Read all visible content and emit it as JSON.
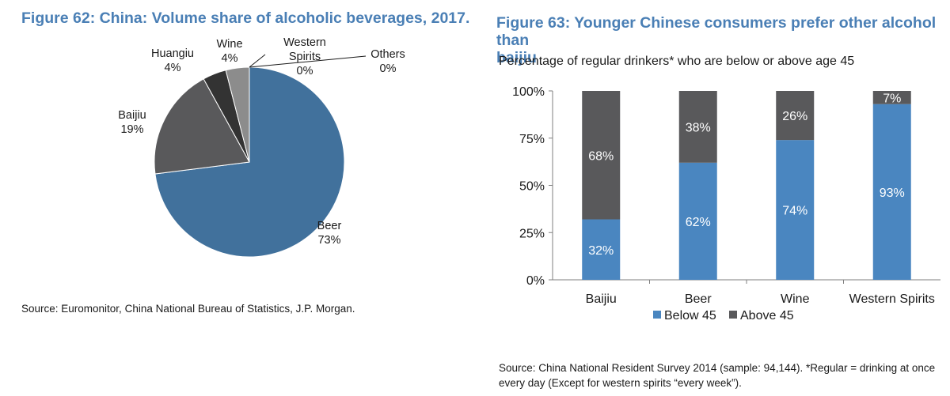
{
  "left": {
    "title": "Figure 62: China: Volume share of alcoholic beverages, 2017.",
    "source": "Source: Euromonitor, China National Bureau of Statistics, J.P. Morgan."
  },
  "right": {
    "title_line1": "Figure 63: Younger Chinese consumers prefer other alcohol than",
    "title_line2": "baijiu",
    "subtitle": "Percentage of regular drinkers* who are below or above age 45",
    "source_line1": "Source: China National Resident Survey 2014 (sample: 94,144). *Regular = drinking at once",
    "source_line2": "every day (Except for western spirits “every week”)."
  },
  "colors": {
    "blue": "#4a86c0",
    "blue_dark": "#41719c",
    "dark": "#59595b",
    "black": "#333333",
    "gray": "#8c8c8c",
    "title": "#4a7fb5"
  },
  "chart_data": [
    {
      "type": "pie",
      "title": "Figure 62: China: Volume share of alcoholic beverages, 2017.",
      "slices": [
        {
          "label": "Beer",
          "value": 73,
          "pct_label": "73%"
        },
        {
          "label": "Baijiu",
          "value": 19,
          "pct_label": "19%"
        },
        {
          "label": "Huangiu",
          "value": 4,
          "pct_label": "4%"
        },
        {
          "label": "Wine",
          "value": 4,
          "pct_label": "4%"
        },
        {
          "label": "Western Spirits",
          "label_lines": [
            "Western",
            "Spirits"
          ],
          "value": 0,
          "pct_label": "0%"
        },
        {
          "label": "Others",
          "value": 0,
          "pct_label": "0%"
        }
      ]
    },
    {
      "type": "bar",
      "stacked": true,
      "title": "Figure 63: Younger Chinese consumers prefer other alcohol than baijiu",
      "categories": [
        "Baijiu",
        "Beer",
        "Wine",
        "Western Spirits"
      ],
      "series": [
        {
          "name": "Below 45",
          "values": [
            32,
            62,
            74,
            93
          ],
          "labels": [
            "32%",
            "62%",
            "74%",
            "93%"
          ]
        },
        {
          "name": "Above 45",
          "values": [
            68,
            38,
            26,
            7
          ],
          "labels": [
            "68%",
            "38%",
            "26%",
            "7%"
          ]
        }
      ],
      "yticks": [
        "0%",
        "25%",
        "50%",
        "75%",
        "100%"
      ],
      "ylim": [
        0,
        100
      ],
      "legend_position": "bottom"
    }
  ]
}
